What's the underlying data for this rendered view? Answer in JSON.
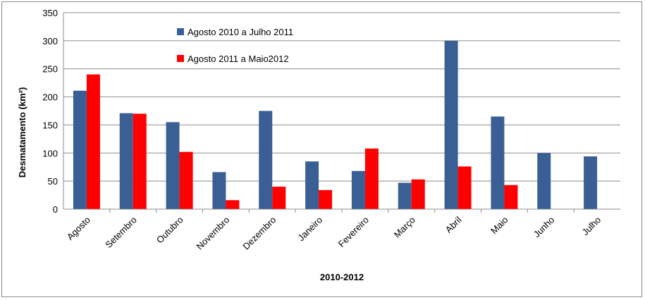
{
  "chart_data": {
    "type": "bar",
    "title": "",
    "xlabel": "2010-2012",
    "ylabel": "Desmatamento (km²)",
    "ylim": [
      0,
      350
    ],
    "yticks": [
      0,
      50,
      100,
      150,
      200,
      250,
      300,
      350
    ],
    "grid": true,
    "legend_position": "top-center",
    "categories": [
      "Agosto",
      "Setembro",
      "Outubro",
      "Novembro",
      "Dezembro",
      "Janeiro",
      "Fevereiro",
      "Março",
      "Abril",
      "Maio",
      "Junho",
      "Julho"
    ],
    "series": [
      {
        "name": "Agosto 2010 a Julho 2011",
        "color": "#3A5F95",
        "values": [
          211,
          171,
          155,
          66,
          175,
          85,
          68,
          47,
          300,
          165,
          100,
          94
        ]
      },
      {
        "name": "Agosto 2011 a Maio2012",
        "color": "#FF0000",
        "values": [
          240,
          170,
          102,
          16,
          40,
          34,
          108,
          53,
          76,
          43,
          null,
          null
        ]
      }
    ]
  }
}
